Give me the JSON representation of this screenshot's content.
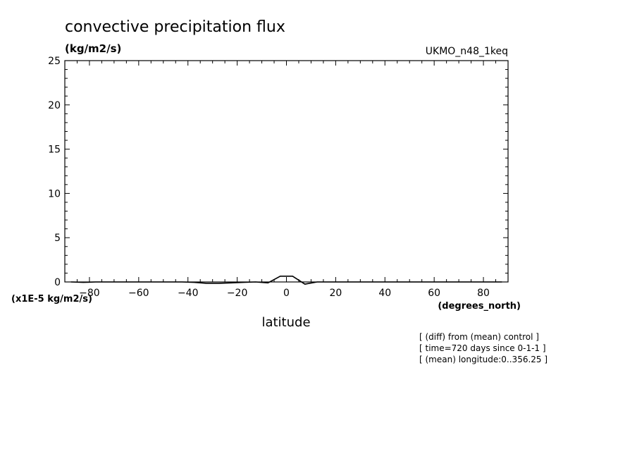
{
  "chart_data": {
    "type": "line",
    "title": "convective precipitation flux",
    "units_label": "(kg/m2/s)",
    "model_label": "UKMO_n48_1keq",
    "scale_label": "(x1E-5 kg/m2/s)",
    "xunits_label": "(degrees_north)",
    "xlabel": "latitude",
    "notes": [
      "[ (diff) from (mean) control ]",
      "[ time=720 days since 0-1-1 ]",
      "[ (mean) longitude:0..356.25 ]"
    ],
    "xlim": [
      -90,
      90
    ],
    "ylim": [
      0,
      25
    ],
    "xticks": [
      -80,
      -60,
      -40,
      -20,
      0,
      20,
      40,
      60,
      80
    ],
    "yticks": [
      0,
      5,
      10,
      15,
      20,
      25
    ],
    "series": [
      {
        "x": [
          -87.5,
          -82.5,
          -77.5,
          -72.5,
          -67.5,
          -62.5,
          -57.5,
          -52.5,
          -47.5,
          -42.5,
          -37.5,
          -32.5,
          -27.5,
          -22.5,
          -17.5,
          -12.5,
          -7.5,
          -2.5,
          2.5,
          7.5,
          12.5,
          17.5,
          22.5,
          27.5,
          32.5,
          37.5,
          42.5,
          47.5,
          52.5,
          57.5,
          62.5,
          67.5,
          72.5,
          77.5,
          82.5,
          87.5
        ],
        "y": [
          0,
          -0.05,
          0,
          0,
          0,
          0,
          0,
          0,
          0,
          0,
          -0.05,
          -0.15,
          -0.15,
          -0.1,
          -0.05,
          0,
          -0.1,
          0.65,
          0.65,
          -0.25,
          0,
          0,
          0,
          0,
          0,
          0,
          0,
          0,
          0,
          0,
          0,
          0,
          0,
          0,
          0,
          0
        ]
      }
    ]
  }
}
